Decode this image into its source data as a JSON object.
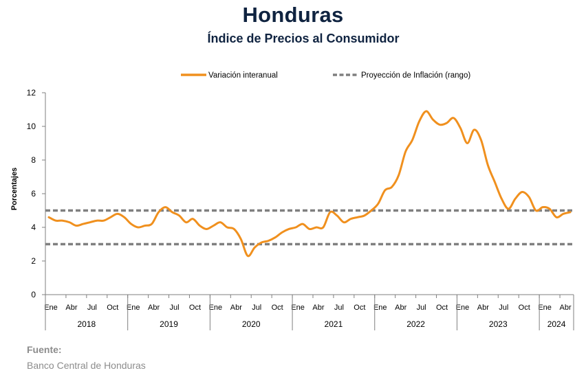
{
  "header": {
    "title": "Honduras",
    "subtitle": "Índice de Precios al Consumidor"
  },
  "source": {
    "label": "Fuente:",
    "value": "Banco Central de Honduras"
  },
  "colors": {
    "series_line": "#F0901E",
    "projection_line": "#7f7f7f",
    "title": "#0f2340",
    "axis": "#7f7f7f"
  },
  "chart_data": {
    "type": "line",
    "title": "Índice de Precios al Consumidor",
    "xlabel": "",
    "ylabel": "Porcentajes",
    "ylim": [
      0,
      12
    ],
    "yticks": [
      0,
      2,
      4,
      6,
      8,
      10,
      12
    ],
    "grid": false,
    "legend_position": "top",
    "month_tick_labels": [
      "Ene",
      "Abr",
      "Jul",
      "Oct"
    ],
    "years": [
      "2018",
      "2019",
      "2020",
      "2021",
      "2022",
      "2023",
      "2024"
    ],
    "x_start": "2018-01",
    "x_end": "2024-04",
    "series": [
      {
        "name": "Variación interanual",
        "style": "solid",
        "values": [
          4.6,
          4.4,
          4.4,
          4.3,
          4.1,
          4.2,
          4.3,
          4.4,
          4.4,
          4.6,
          4.8,
          4.6,
          4.2,
          4.0,
          4.1,
          4.2,
          4.9,
          5.2,
          4.9,
          4.7,
          4.3,
          4.5,
          4.1,
          3.9,
          4.1,
          4.3,
          4.0,
          3.9,
          3.3,
          2.3,
          2.8,
          3.1,
          3.2,
          3.4,
          3.7,
          3.9,
          4.0,
          4.2,
          3.9,
          4.0,
          4.0,
          4.9,
          4.7,
          4.3,
          4.5,
          4.6,
          4.7,
          5.0,
          5.4,
          6.2,
          6.4,
          7.1,
          8.5,
          9.2,
          10.3,
          10.9,
          10.4,
          10.1,
          10.2,
          10.5,
          9.9,
          9.0,
          9.8,
          9.2,
          7.7,
          6.7,
          5.7,
          5.1,
          5.7,
          6.1,
          5.8,
          5.0,
          5.2,
          5.1,
          4.6,
          4.8,
          4.9
        ]
      },
      {
        "name": "Proyección de Inflación (rango)",
        "style": "dashed",
        "range": [
          3,
          5
        ]
      }
    ]
  }
}
